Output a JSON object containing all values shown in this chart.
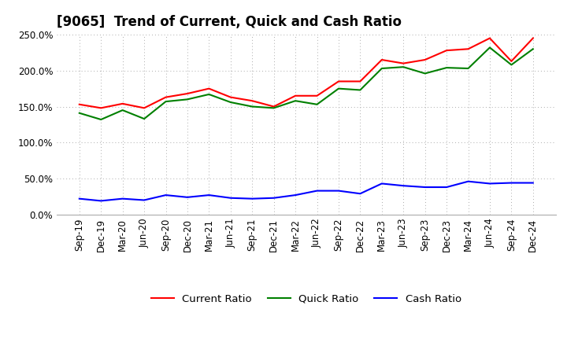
{
  "title": "[9065]  Trend of Current, Quick and Cash Ratio",
  "x_labels": [
    "Sep-19",
    "Dec-19",
    "Mar-20",
    "Jun-20",
    "Sep-20",
    "Dec-20",
    "Mar-21",
    "Jun-21",
    "Sep-21",
    "Dec-21",
    "Mar-22",
    "Jun-22",
    "Sep-22",
    "Dec-22",
    "Mar-23",
    "Jun-23",
    "Sep-23",
    "Dec-23",
    "Mar-24",
    "Jun-24",
    "Sep-24",
    "Dec-24"
  ],
  "current_ratio": [
    153,
    148,
    154,
    148,
    163,
    168,
    175,
    163,
    158,
    150,
    165,
    165,
    185,
    185,
    215,
    210,
    215,
    228,
    230,
    245,
    213,
    245
  ],
  "quick_ratio": [
    141,
    132,
    145,
    133,
    157,
    160,
    167,
    156,
    150,
    148,
    158,
    153,
    175,
    173,
    203,
    205,
    196,
    204,
    203,
    232,
    208,
    230
  ],
  "cash_ratio": [
    22,
    19,
    22,
    20,
    27,
    24,
    27,
    23,
    22,
    23,
    27,
    33,
    33,
    29,
    43,
    40,
    38,
    38,
    46,
    43,
    44,
    44
  ],
  "ylim": [
    0,
    250
  ],
  "yticks": [
    0,
    50,
    100,
    150,
    200,
    250
  ],
  "current_color": "#FF0000",
  "quick_color": "#008000",
  "cash_color": "#0000FF",
  "bg_color": "#FFFFFF",
  "plot_bg_color": "#FFFFFF",
  "grid_color": "#AAAAAA",
  "title_fontsize": 12,
  "axis_fontsize": 8.5,
  "legend_fontsize": 9.5
}
